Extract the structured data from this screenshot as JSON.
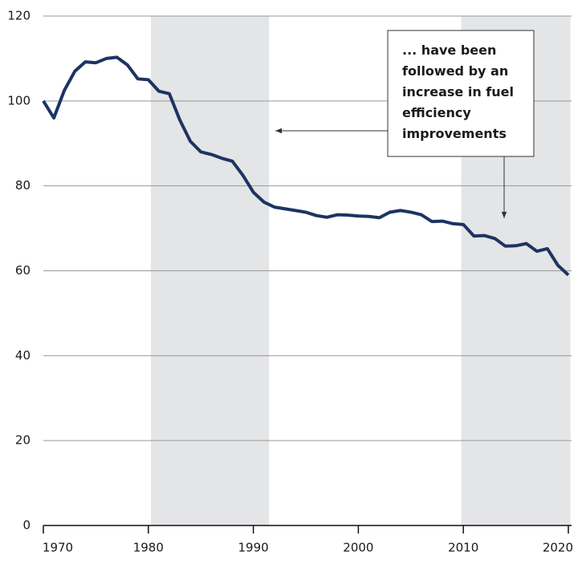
{
  "chart_data": {
    "type": "line",
    "x": [
      1970,
      1971,
      1972,
      1973,
      1974,
      1975,
      1976,
      1977,
      1978,
      1979,
      1980,
      1981,
      1982,
      1983,
      1984,
      1985,
      1986,
      1987,
      1988,
      1989,
      1990,
      1991,
      1992,
      1993,
      1994,
      1995,
      1996,
      1997,
      1998,
      1999,
      2000,
      2001,
      2002,
      2003,
      2004,
      2005,
      2006,
      2007,
      2008,
      2009,
      2010,
      2011,
      2012,
      2013,
      2014,
      2015,
      2016,
      2017,
      2018,
      2019,
      2020
    ],
    "series": [
      {
        "color": "#1d3461",
        "values": [
          100,
          96,
          102.5,
          107,
          109.2,
          109,
          110,
          110.3,
          108.5,
          105.2,
          105,
          102.3,
          101.7,
          95.5,
          90.5,
          88,
          87.4,
          86.5,
          85.8,
          82.5,
          78.5,
          76.2,
          75,
          74.6,
          74.2,
          73.8,
          73,
          72.6,
          73.2,
          73.1,
          72.9,
          72.8,
          72.5,
          73.8,
          74.2,
          73.8,
          73.2,
          71.6,
          71.7,
          71.1,
          70.9,
          68.2,
          68.3,
          67.6,
          65.8,
          65.9,
          66.4,
          64.6,
          65.2,
          61.3,
          59
        ]
      }
    ],
    "xlim": [
      1970,
      2020
    ],
    "ylim": [
      0,
      120
    ],
    "xticks": [
      1970,
      1980,
      1990,
      2000,
      2010,
      2020
    ],
    "yticks": [
      0,
      20,
      40,
      60,
      80,
      100,
      120
    ],
    "grid": true,
    "shaded_regions": [
      [
        1980.25,
        1991.5
      ],
      [
        2009.8,
        2020.2
      ]
    ],
    "annotation": {
      "lines": [
        "... have been",
        "followed by an",
        "increase in fuel",
        "efficiency",
        "improvements"
      ]
    }
  }
}
